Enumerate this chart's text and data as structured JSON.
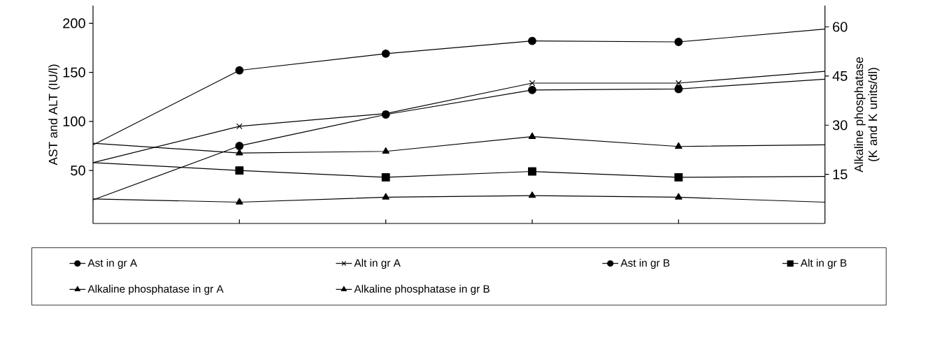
{
  "chart_data": {
    "type": "line",
    "categories": [
      null,
      null,
      null,
      null,
      null,
      null
    ],
    "ylabel": "AST and ALT (IU/l)",
    "y2label": "Alkaline phosphatase (K and K units/dl)",
    "ylim": [
      -4,
      218
    ],
    "yticks": [
      50,
      100,
      150,
      200
    ],
    "y2lim": [
      0,
      66.5
    ],
    "y2ticks": [
      15,
      30,
      45,
      60
    ],
    "legend": "bottom",
    "grid": false,
    "line_style": "solid",
    "series": [
      {
        "name": "Ast in gr A",
        "color": "#000000",
        "marker": "circle",
        "values": [
          76,
          152,
          169,
          182,
          181,
          194
        ]
      },
      {
        "name": "Alt in gr A",
        "color": "#000000",
        "marker": "cross",
        "values": [
          58,
          95,
          108,
          139,
          139,
          151
        ]
      },
      {
        "name": "Ast in gr B",
        "color": "#000000",
        "marker": "circle",
        "values": [
          20,
          75,
          107,
          132,
          133,
          143
        ]
      },
      {
        "name": "Alt in gr B",
        "color": "#000000",
        "marker": "square",
        "values": [
          58,
          50,
          43,
          49,
          43,
          44
        ]
      },
      {
        "name": "Alkaline phosphatase in gr A",
        "color": "#000000",
        "marker": "triangle",
        "axis": "y2",
        "values": [
          24.5,
          21.5,
          22,
          26.5,
          23.5,
          24
        ]
      },
      {
        "name": "Alkaline phosphatase in gr B",
        "color": "#000000",
        "marker": "triangle",
        "axis": "y2",
        "values": [
          7.5,
          6.5,
          8,
          8.5,
          8,
          6.5
        ]
      }
    ]
  }
}
